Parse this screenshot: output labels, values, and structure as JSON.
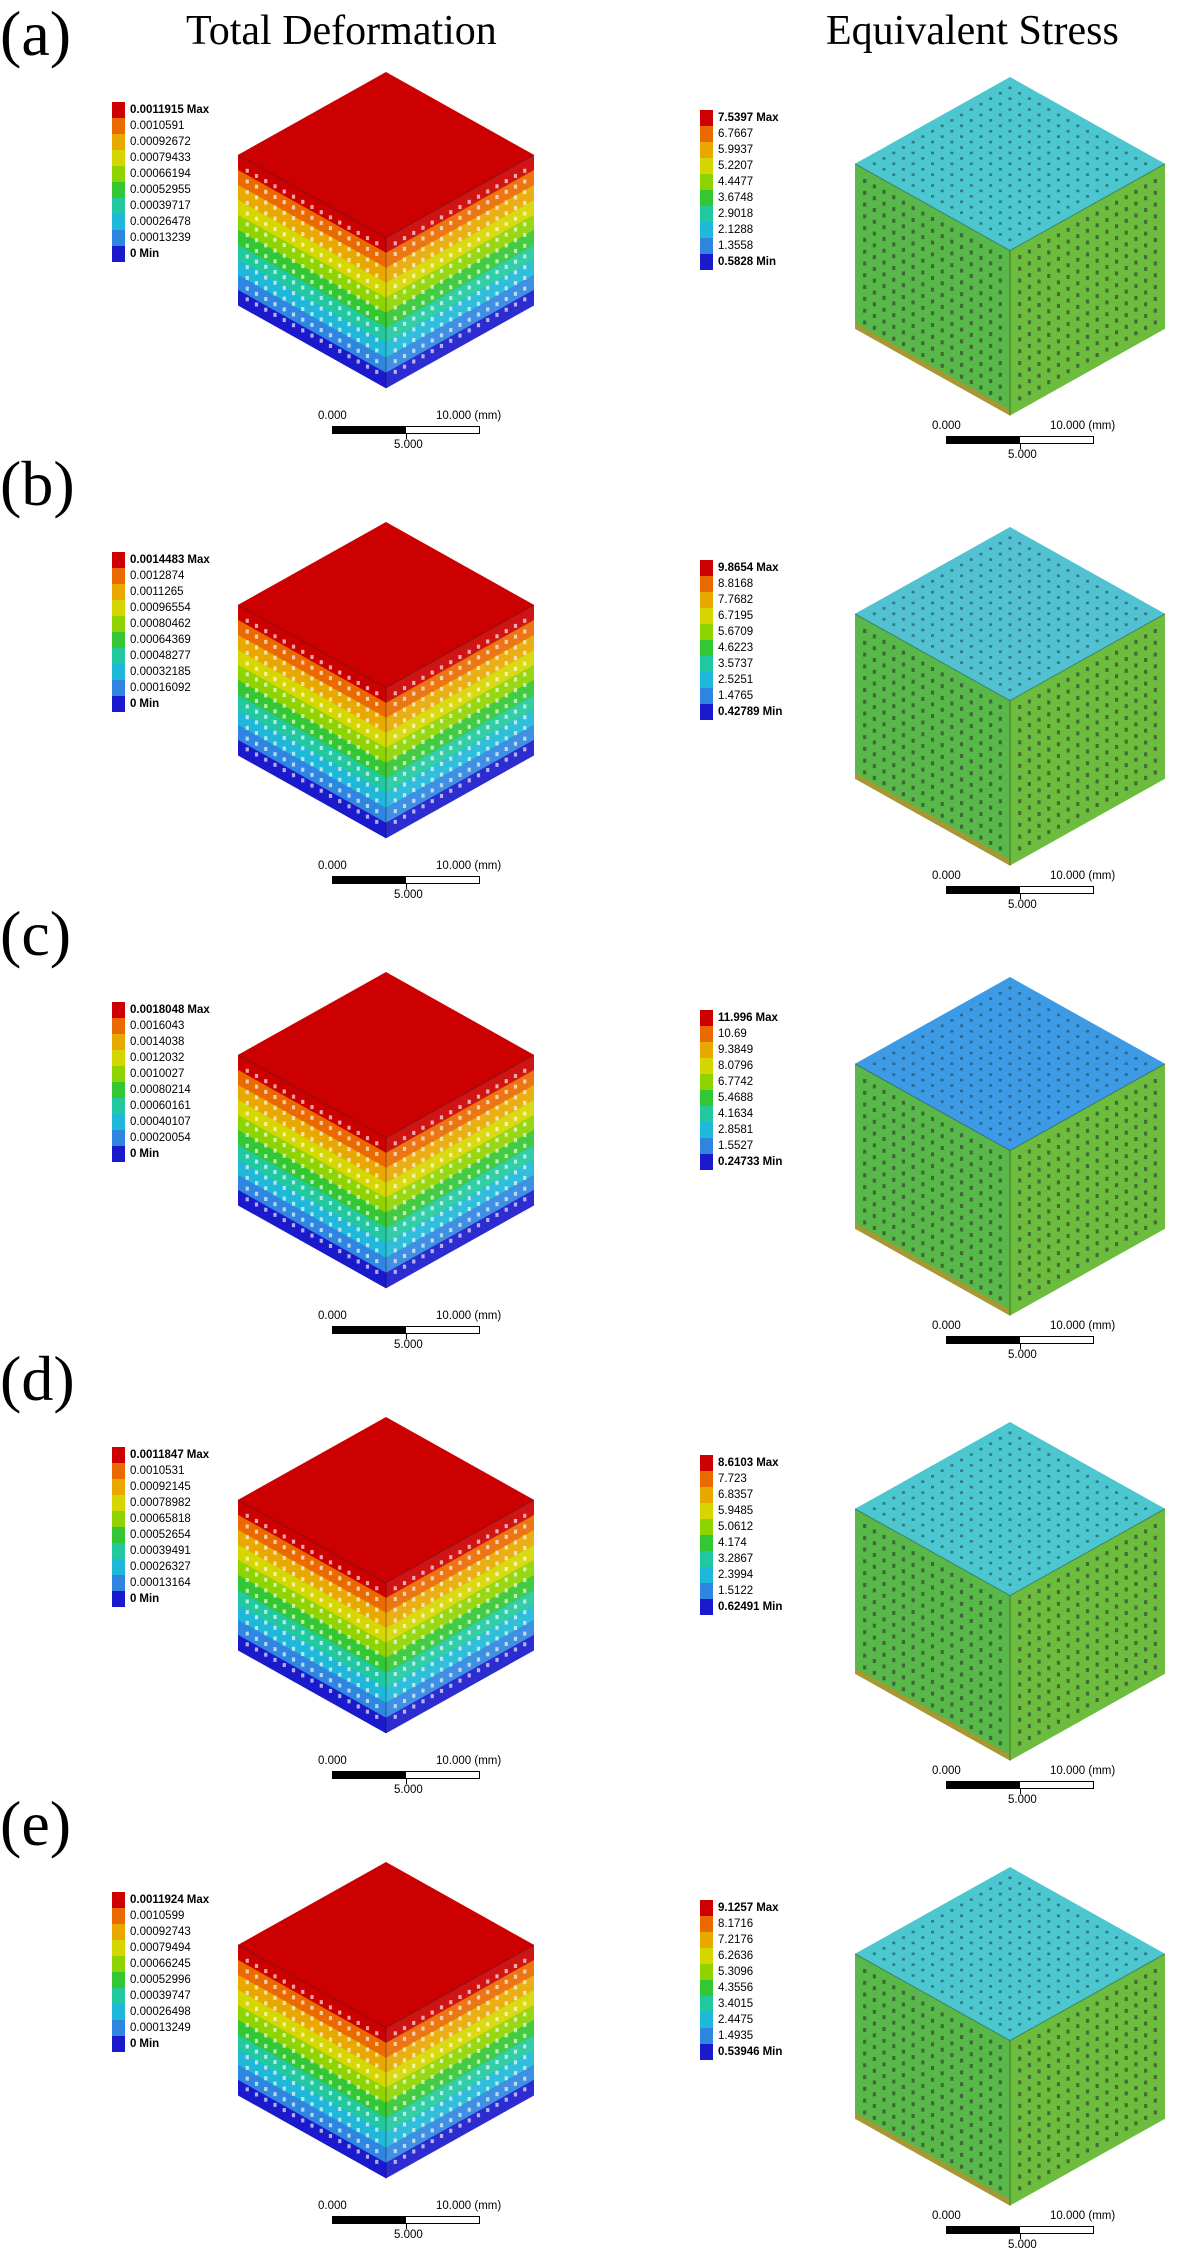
{
  "column_titles": {
    "left": "Total Deformation",
    "right": "Equivalent Stress"
  },
  "colormap": [
    "#cc0000",
    "#ea6a00",
    "#e8a800",
    "#d6d600",
    "#8fd400",
    "#33c733",
    "#22c9a0",
    "#20b8d8",
    "#2f86e0",
    "#1a1acc"
  ],
  "scale_bar": {
    "zero": "0.000",
    "ten": "10.000",
    "unit": "(mm)",
    "five": "5.000"
  },
  "panels": [
    {
      "label": "(a)",
      "deformation": {
        "values": [
          "0.0011915",
          "0.0010591",
          "0.00092672",
          "0.00079433",
          "0.00066194",
          "0.00052955",
          "0.00039717",
          "0.00026478",
          "0.00013239",
          "0"
        ],
        "max_suffix": "Max",
        "min_suffix": "Min"
      },
      "stress": {
        "values": [
          "7.5397",
          "6.7667",
          "5.9937",
          "5.2207",
          "4.4477",
          "3.6748",
          "2.9018",
          "2.1288",
          "1.3558",
          "0.5828"
        ],
        "max_suffix": "Max",
        "min_suffix": "Min"
      }
    },
    {
      "label": "(b)",
      "deformation": {
        "values": [
          "0.0014483",
          "0.0012874",
          "0.0011265",
          "0.00096554",
          "0.00080462",
          "0.00064369",
          "0.00048277",
          "0.00032185",
          "0.00016092",
          "0"
        ],
        "max_suffix": "Max",
        "min_suffix": "Min"
      },
      "stress": {
        "values": [
          "9.8654",
          "8.8168",
          "7.7682",
          "6.7195",
          "5.6709",
          "4.6223",
          "3.5737",
          "2.5251",
          "1.4765",
          "0.42789"
        ],
        "max_suffix": "Max",
        "min_suffix": "Min"
      }
    },
    {
      "label": "(c)",
      "deformation": {
        "values": [
          "0.0018048",
          "0.0016043",
          "0.0014038",
          "0.0012032",
          "0.0010027",
          "0.00080214",
          "0.00060161",
          "0.00040107",
          "0.00020054",
          "0"
        ],
        "max_suffix": "Max",
        "min_suffix": "Min"
      },
      "stress": {
        "values": [
          "11.996",
          "10.69",
          "9.3849",
          "8.0796",
          "6.7742",
          "5.4688",
          "4.1634",
          "2.8581",
          "1.5527",
          "0.24733"
        ],
        "max_suffix": "Max",
        "min_suffix": "Min"
      }
    },
    {
      "label": "(d)",
      "deformation": {
        "values": [
          "0.0011847",
          "0.0010531",
          "0.00092145",
          "0.00078982",
          "0.00065818",
          "0.00052654",
          "0.00039491",
          "0.00026327",
          "0.00013164",
          "0"
        ],
        "max_suffix": "Max",
        "min_suffix": "Min"
      },
      "stress": {
        "values": [
          "8.6103",
          "7.723",
          "6.8357",
          "5.9485",
          "5.0612",
          "4.174",
          "3.2867",
          "2.3994",
          "1.5122",
          "0.62491"
        ],
        "max_suffix": "Max",
        "min_suffix": "Min"
      }
    },
    {
      "label": "(e)",
      "deformation": {
        "values": [
          "0.0011924",
          "0.0010599",
          "0.00092743",
          "0.00079494",
          "0.00066245",
          "0.00052996",
          "0.00039747",
          "0.00026498",
          "0.00013249",
          "0"
        ],
        "max_suffix": "Max",
        "min_suffix": "Min"
      },
      "stress": {
        "values": [
          "9.1257",
          "8.1716",
          "7.2176",
          "6.2636",
          "5.3096",
          "4.3556",
          "3.4015",
          "2.4475",
          "1.4935",
          "0.53946"
        ],
        "max_suffix": "Max",
        "min_suffix": "Min"
      }
    }
  ]
}
